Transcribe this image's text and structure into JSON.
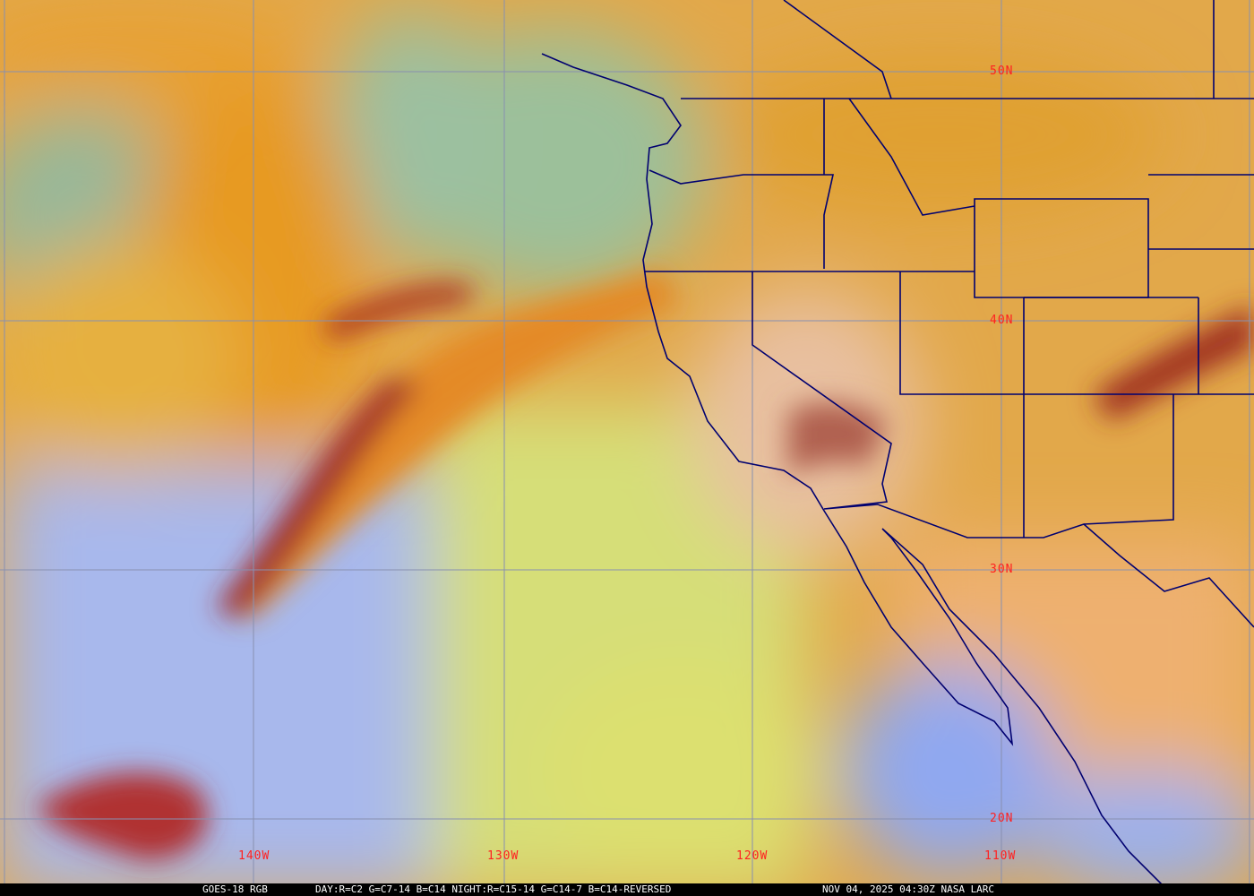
{
  "image": {
    "product": "GOES-18 RGB",
    "recipe": "DAY:R=C2 G=C7-14 B=C14 NIGHT:R=C15-14 G=C14-7 B=C14-REVERSED",
    "timestamp": "NOV 04, 2025 04:30Z NASA LARC"
  },
  "latitude_labels": [
    "50N",
    "40N",
    "30N",
    "20N"
  ],
  "longitude_labels": [
    "140W",
    "130W",
    "120W",
    "110W"
  ],
  "colors": {
    "label": "#ff2020",
    "gridline": "#8890b0",
    "boundaries": "#000070",
    "caption_bg": "#000000",
    "caption_text": "#ffffff"
  }
}
